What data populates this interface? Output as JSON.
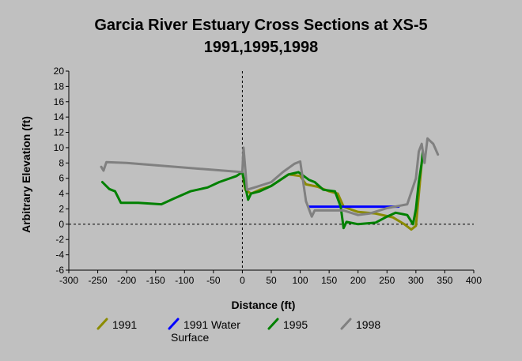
{
  "chart_data": {
    "type": "line",
    "title_lines": [
      "Garcia River Estuary Cross Sections at XS-5",
      "1991,1995,1998"
    ],
    "xlabel": "Distance (ft)",
    "ylabel": "Arbitrary Elevation (ft)",
    "xlim": [
      -300,
      400
    ],
    "ylim": [
      -6,
      20
    ],
    "x_ticks": [
      -300,
      -250,
      -200,
      -150,
      -100,
      -50,
      0,
      50,
      100,
      150,
      200,
      250,
      300,
      350,
      400
    ],
    "y_ticks": [
      -6,
      -4,
      -2,
      0,
      2,
      4,
      6,
      8,
      10,
      12,
      14,
      16,
      18,
      20
    ],
    "grid": false,
    "reference_lines": {
      "x": 0,
      "y": 0,
      "style": "dashed"
    },
    "legend_position": "bottom",
    "series": [
      {
        "name": "1991",
        "color": "#8b8b00",
        "points": [
          [
            0,
            6.8
          ],
          [
            5,
            4.5
          ],
          [
            15,
            4.0
          ],
          [
            30,
            4.5
          ],
          [
            50,
            5.0
          ],
          [
            80,
            6.5
          ],
          [
            100,
            6.3
          ],
          [
            110,
            5.2
          ],
          [
            130,
            4.9
          ],
          [
            150,
            4.3
          ],
          [
            165,
            4.0
          ],
          [
            175,
            2.3
          ],
          [
            185,
            2.0
          ],
          [
            200,
            1.6
          ],
          [
            230,
            1.4
          ],
          [
            260,
            0.9
          ],
          [
            280,
            0.0
          ],
          [
            292,
            -0.7
          ],
          [
            300,
            -0.2
          ],
          [
            310,
            8.0
          ]
        ]
      },
      {
        "name": "1991 Water Surface",
        "color": "#0000ff",
        "points": [
          [
            115,
            2.3
          ],
          [
            270,
            2.3
          ]
        ]
      },
      {
        "name": "1995",
        "color": "#008000",
        "points": [
          [
            -242,
            5.5
          ],
          [
            -230,
            4.6
          ],
          [
            -220,
            4.3
          ],
          [
            -210,
            2.8
          ],
          [
            -200,
            2.8
          ],
          [
            -180,
            2.8
          ],
          [
            -140,
            2.6
          ],
          [
            -120,
            3.3
          ],
          [
            -90,
            4.3
          ],
          [
            -60,
            4.8
          ],
          [
            -40,
            5.5
          ],
          [
            -10,
            6.3
          ],
          [
            0,
            6.8
          ],
          [
            10,
            3.2
          ],
          [
            15,
            4.0
          ],
          [
            30,
            4.3
          ],
          [
            50,
            5.0
          ],
          [
            80,
            6.5
          ],
          [
            97,
            6.8
          ],
          [
            115,
            5.8
          ],
          [
            125,
            5.5
          ],
          [
            140,
            4.5
          ],
          [
            160,
            4.3
          ],
          [
            170,
            2.3
          ],
          [
            175,
            -0.5
          ],
          [
            180,
            0.3
          ],
          [
            200,
            0.0
          ],
          [
            230,
            0.2
          ],
          [
            250,
            1.0
          ],
          [
            265,
            1.5
          ],
          [
            285,
            1.2
          ],
          [
            295,
            0.0
          ],
          [
            300,
            2.0
          ],
          [
            305,
            5.5
          ],
          [
            310,
            8.0
          ],
          [
            312,
            9.5
          ]
        ]
      },
      {
        "name": "1998",
        "color": "#808080",
        "points": [
          [
            -244,
            7.5
          ],
          [
            -240,
            7.0
          ],
          [
            -235,
            8.1
          ],
          [
            -200,
            8.0
          ],
          [
            0,
            6.8
          ],
          [
            2,
            10.0
          ],
          [
            8,
            4.5
          ],
          [
            25,
            4.9
          ],
          [
            50,
            5.5
          ],
          [
            70,
            6.8
          ],
          [
            90,
            7.9
          ],
          [
            100,
            8.2
          ],
          [
            110,
            3.0
          ],
          [
            120,
            1.0
          ],
          [
            125,
            1.8
          ],
          [
            150,
            1.8
          ],
          [
            175,
            1.8
          ],
          [
            200,
            1.2
          ],
          [
            220,
            1.4
          ],
          [
            250,
            2.1
          ],
          [
            285,
            2.6
          ],
          [
            300,
            6.0
          ],
          [
            305,
            9.5
          ],
          [
            310,
            10.5
          ],
          [
            315,
            8.0
          ],
          [
            320,
            11.2
          ],
          [
            330,
            10.5
          ],
          [
            338,
            9.1
          ]
        ]
      }
    ],
    "legend_entries": [
      {
        "series": "1991",
        "lines": [
          "1991"
        ]
      },
      {
        "series": "1991 Water Surface",
        "lines": [
          "1991 Water",
          "Surface"
        ]
      },
      {
        "series": "1995",
        "lines": [
          "1995"
        ]
      },
      {
        "series": "1998",
        "lines": [
          "1998"
        ]
      }
    ]
  }
}
